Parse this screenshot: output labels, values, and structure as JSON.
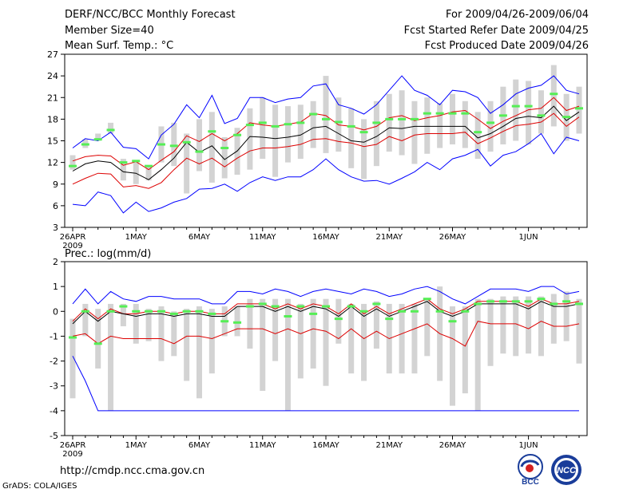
{
  "header": {
    "title": "DERF/NCC/BCC Monthly Forecast",
    "member_size": "Member Size=40",
    "variable": "Mean Surf. Temp.: °C",
    "period": "For 2009/04/26-2009/06/04",
    "started": "Fcst Started Refer Date 2009/04/25",
    "produced": "Fcst Produced Date 2009/04/26"
  },
  "footer": {
    "url": "http://cmdp.ncc.cma.gov.cn",
    "grads": "GrADS: COLA/IGES",
    "logo_bcc": "BCC",
    "logo_ncc": "NCC"
  },
  "colors": {
    "max": "#0000ff",
    "spread": "#dd0000",
    "mean": "#000000",
    "box": "#d3d3d3",
    "climate": "#55ee55"
  },
  "chart_data": [
    {
      "type": "line",
      "title": "Mean Surf. Temp.: °C",
      "x_labels": [
        "26APR",
        "1MAY",
        "6MAY",
        "11MAY",
        "16MAY",
        "21MAY",
        "26MAY",
        "1JUN"
      ],
      "x_year": "2009",
      "x_range": [
        0,
        40
      ],
      "ylim": [
        3,
        27
      ],
      "y_ticks": [
        3,
        6,
        9,
        12,
        15,
        18,
        21,
        24,
        27
      ],
      "grid": false,
      "series": [
        {
          "name": "max",
          "values": [
            6.2,
            6.0,
            7.9,
            7.4,
            5.0,
            6.5,
            5.2,
            5.7,
            6.5,
            7.0,
            8.3,
            8.4,
            9.0,
            8.0,
            9.2,
            10.0,
            9.5,
            10.0,
            10.0,
            11.0,
            12.5,
            11.0,
            10.0,
            9.4,
            9.5,
            9.0,
            9.8,
            10.7,
            12.0,
            11.0,
            12.5,
            13.0,
            13.8,
            11.5,
            13.0,
            13.5,
            14.6,
            16.0,
            13.2,
            15.5,
            15.0
          ]
        },
        {
          "name": "max-upper",
          "values": [
            14.0,
            15.3,
            15.0,
            16.2,
            14.1,
            13.9,
            12.5,
            15.8,
            17.3,
            20.0,
            18.2,
            21.3,
            17.4,
            18.1,
            21.0,
            21.0,
            20.3,
            20.8,
            21.0,
            22.6,
            22.9,
            20.0,
            19.5,
            18.7,
            20.0,
            22.0,
            24.0,
            22.0,
            21.3,
            20.0,
            22.0,
            21.8,
            21.0,
            18.8,
            20.0,
            21.5,
            22.3,
            22.7,
            24.0,
            22.0,
            21.5
          ]
        },
        {
          "name": "spread-upper",
          "values": [
            12.2,
            12.8,
            13.0,
            12.9,
            11.6,
            12.1,
            11.0,
            12.3,
            13.5,
            15.7,
            14.9,
            16.0,
            15.0,
            16.0,
            17.5,
            17.2,
            17.0,
            17.3,
            17.6,
            18.8,
            18.5,
            17.2,
            17.0,
            16.5,
            17.0,
            18.2,
            18.5,
            17.8,
            18.2,
            18.5,
            19.0,
            19.2,
            18.0,
            16.7,
            17.7,
            18.5,
            19.3,
            19.5,
            21.0,
            19.2,
            19.8
          ]
        },
        {
          "name": "mean",
          "values": [
            10.8,
            11.8,
            12.2,
            12.0,
            10.7,
            10.5,
            9.6,
            11.0,
            12.6,
            14.8,
            13.4,
            14.3,
            12.4,
            13.6,
            15.6,
            15.5,
            15.3,
            15.5,
            15.8,
            16.8,
            17.0,
            16.0,
            15.0,
            14.8,
            15.6,
            16.8,
            16.7,
            17.0,
            17.0,
            17.0,
            17.0,
            17.0,
            15.4,
            16.0,
            17.0,
            18.1,
            18.4,
            18.2,
            19.8,
            17.8,
            19.0
          ]
        },
        {
          "name": "spread-lower",
          "values": [
            9.0,
            9.8,
            10.5,
            10.4,
            8.6,
            8.8,
            8.4,
            9.2,
            11.0,
            12.6,
            11.8,
            12.6,
            11.4,
            12.6,
            13.6,
            14.0,
            14.0,
            14.2,
            14.5,
            15.2,
            15.3,
            14.9,
            14.7,
            14.2,
            14.5,
            15.6,
            15.0,
            15.8,
            16.0,
            16.0,
            16.0,
            16.2,
            14.6,
            15.4,
            16.3,
            17.1,
            17.3,
            17.6,
            18.8,
            17.0,
            18.3
          ]
        }
      ],
      "boxes": [
        {
          "low": 11.0,
          "high": 13.0
        },
        {
          "low": 14.0,
          "high": 15.2
        },
        {
          "low": 15.0,
          "high": 16.0
        },
        {
          "low": 16.0,
          "high": 17.5
        },
        {
          "low": 9.5,
          "high": 12.5
        },
        {
          "low": 9.0,
          "high": 12.0
        },
        {
          "low": 9.5,
          "high": 11.5
        },
        {
          "low": 12.0,
          "high": 17.0
        },
        {
          "low": 11.5,
          "high": 17.5
        },
        {
          "low": 7.7,
          "high": 16.0
        },
        {
          "low": 10.8,
          "high": 18.0
        },
        {
          "low": 9.2,
          "high": 19.0
        },
        {
          "low": 9.8,
          "high": 15.5
        },
        {
          "low": 10.3,
          "high": 16.8
        },
        {
          "low": 11.0,
          "high": 19.5
        },
        {
          "low": 12.5,
          "high": 21.0
        },
        {
          "low": 10.0,
          "high": 20.0
        },
        {
          "low": 12.0,
          "high": 19.8
        },
        {
          "low": 12.5,
          "high": 20.0
        },
        {
          "low": 14.0,
          "high": 20.5
        },
        {
          "low": 13.3,
          "high": 24.0
        },
        {
          "low": 13.5,
          "high": 21.0
        },
        {
          "low": 11.2,
          "high": 19.5
        },
        {
          "low": 9.7,
          "high": 18.0
        },
        {
          "low": 11.5,
          "high": 20.5
        },
        {
          "low": 13.5,
          "high": 21.5
        },
        {
          "low": 13.0,
          "high": 22.0
        },
        {
          "low": 11.8,
          "high": 20.5
        },
        {
          "low": 13.2,
          "high": 21.0
        },
        {
          "low": 14.0,
          "high": 20.2
        },
        {
          "low": 14.5,
          "high": 21.5
        },
        {
          "low": 14.0,
          "high": 20.5
        },
        {
          "low": 12.5,
          "high": 19.0
        },
        {
          "low": 13.5,
          "high": 20.5
        },
        {
          "low": 14.5,
          "high": 22.5
        },
        {
          "low": 15.0,
          "high": 23.5
        },
        {
          "low": 14.5,
          "high": 23.3
        },
        {
          "low": 16.0,
          "high": 22.0
        },
        {
          "low": 17.0,
          "high": 25.5
        },
        {
          "low": 15.0,
          "high": 21.5
        },
        {
          "low": 16.0,
          "high": 22.5
        }
      ],
      "climate": [
        11.5,
        14.5,
        15.2,
        16.5,
        12.0,
        12.2,
        11.5,
        14.5,
        14.3,
        14.8,
        13.5,
        16.3,
        14.0,
        15.8,
        17.2,
        17.5,
        17.0,
        17.3,
        17.5,
        18.7,
        18.0,
        17.6,
        17.0,
        16.2,
        17.5,
        18.0,
        18.0,
        18.0,
        18.8,
        18.8,
        18.8,
        18.8,
        16.2,
        17.5,
        18.5,
        19.8,
        19.8,
        18.5,
        21.5,
        18.3,
        19.5
      ]
    },
    {
      "type": "line",
      "title": "Prec.: log(mm/d)",
      "x_labels": [
        "26APR",
        "1MAY",
        "6MAY",
        "11MAY",
        "16MAY",
        "21MAY",
        "26MAY",
        "1JUN"
      ],
      "x_year": "2009",
      "x_range": [
        0,
        40
      ],
      "ylim": [
        -5,
        2
      ],
      "y_ticks": [
        -5,
        -4,
        -3,
        -2,
        -1,
        0,
        1,
        2
      ],
      "grid": false,
      "series": [
        {
          "name": "max",
          "values": [
            -1.8,
            -2.8,
            -4.0,
            -4.0,
            -4.0,
            -4.0,
            -4.0,
            -4.0,
            -4.0,
            -4.0,
            -4.0,
            -4.0,
            -4.0,
            -4.0,
            -4.0,
            -4.0,
            -4.0,
            -4.0,
            -4.0,
            -4.0,
            -4.0,
            -4.0,
            -4.0,
            -4.0,
            -4.0,
            -4.0,
            -4.0,
            -4.0,
            -4.0,
            -4.0,
            -4.0,
            -4.0,
            -4.0,
            -4.0,
            -4.0,
            -4.0,
            -4.0,
            -4.0,
            -4.0,
            -4.0,
            -4.0
          ]
        },
        {
          "name": "max-upper",
          "values": [
            0.3,
            0.9,
            0.3,
            0.8,
            0.5,
            0.4,
            0.6,
            0.6,
            0.5,
            0.5,
            0.5,
            0.3,
            0.3,
            0.8,
            0.8,
            0.7,
            0.9,
            0.8,
            0.6,
            0.8,
            0.9,
            0.8,
            0.7,
            0.9,
            0.8,
            0.6,
            0.7,
            0.9,
            1.0,
            0.8,
            0.5,
            0.3,
            0.6,
            0.9,
            0.9,
            0.9,
            0.8,
            1.0,
            1.0,
            0.7,
            0.8
          ]
        },
        {
          "name": "spread-upper",
          "values": [
            -0.4,
            0.1,
            -0.3,
            0.1,
            -0.1,
            -0.1,
            0.0,
            0.0,
            -0.1,
            0.0,
            0.0,
            -0.1,
            -0.1,
            0.3,
            0.3,
            0.3,
            0.1,
            0.3,
            0.1,
            0.3,
            0.2,
            -0.1,
            0.3,
            -0.1,
            0.2,
            -0.1,
            0.1,
            0.3,
            0.5,
            0.1,
            -0.1,
            0.1,
            0.4,
            0.4,
            0.4,
            0.4,
            0.2,
            0.5,
            0.3,
            0.3,
            0.4
          ]
        },
        {
          "name": "mean",
          "values": [
            -0.5,
            0.0,
            -0.4,
            0.0,
            -0.1,
            -0.2,
            -0.1,
            -0.1,
            -0.2,
            -0.1,
            -0.1,
            -0.2,
            -0.2,
            0.2,
            0.2,
            0.2,
            0.0,
            0.2,
            0.0,
            0.2,
            0.1,
            -0.2,
            0.2,
            -0.2,
            0.1,
            -0.2,
            0.0,
            0.2,
            0.4,
            0.0,
            -0.2,
            0.0,
            0.3,
            0.3,
            0.3,
            0.3,
            0.1,
            0.4,
            0.2,
            0.2,
            0.3
          ]
        },
        {
          "name": "spread-lower",
          "values": [
            -1.0,
            -0.9,
            -1.3,
            -1.0,
            -1.1,
            -1.1,
            -1.1,
            -1.1,
            -1.3,
            -1.0,
            -1.0,
            -1.1,
            -0.9,
            -0.7,
            -0.7,
            -0.7,
            -0.9,
            -0.7,
            -0.9,
            -0.7,
            -0.8,
            -1.1,
            -0.7,
            -1.1,
            -0.8,
            -1.1,
            -0.9,
            -0.7,
            -0.5,
            -0.9,
            -1.1,
            -1.4,
            -0.4,
            -0.5,
            -0.5,
            -0.5,
            -0.7,
            -0.4,
            -0.6,
            -0.6,
            -0.5
          ]
        }
      ],
      "boxes": [
        {
          "low": -3.5,
          "high": -0.3
        },
        {
          "low": -1.0,
          "high": 0.3
        },
        {
          "low": -2.3,
          "high": 0.1
        },
        {
          "low": -4.0,
          "high": 0.3
        },
        {
          "low": -0.6,
          "high": 0.3
        },
        {
          "low": -1.3,
          "high": 0.3
        },
        {
          "low": -1.2,
          "high": 0.1
        },
        {
          "low": -2.0,
          "high": 0.2
        },
        {
          "low": -1.8,
          "high": 0.0
        },
        {
          "low": -2.8,
          "high": 0.1
        },
        {
          "low": -3.5,
          "high": 0.2
        },
        {
          "low": -2.5,
          "high": 0.1
        },
        {
          "low": -1.0,
          "high": 0.2
        },
        {
          "low": -1.0,
          "high": 0.2
        },
        {
          "low": -1.5,
          "high": 0.5
        },
        {
          "low": -3.2,
          "high": 0.5
        },
        {
          "low": -2.0,
          "high": 0.5
        },
        {
          "low": -4.0,
          "high": 0.5
        },
        {
          "low": -2.7,
          "high": 0.3
        },
        {
          "low": -2.3,
          "high": 0.5
        },
        {
          "low": -3.0,
          "high": 0.5
        },
        {
          "low": -1.3,
          "high": 0.5
        },
        {
          "low": -2.5,
          "high": 0.3
        },
        {
          "low": -2.8,
          "high": 0.3
        },
        {
          "low": -1.5,
          "high": 0.4
        },
        {
          "low": -2.5,
          "high": 0.3
        },
        {
          "low": -2.5,
          "high": 0.3
        },
        {
          "low": -2.5,
          "high": 0.3
        },
        {
          "low": -1.8,
          "high": 0.5
        },
        {
          "low": -2.8,
          "high": 1.0
        },
        {
          "low": -3.8,
          "high": 0.2
        },
        {
          "low": -3.3,
          "high": 0.2
        },
        {
          "low": -4.0,
          "high": 0.5
        },
        {
          "low": -2.2,
          "high": 0.5
        },
        {
          "low": -1.7,
          "high": 0.6
        },
        {
          "low": -1.8,
          "high": 0.6
        },
        {
          "low": -1.7,
          "high": 0.6
        },
        {
          "low": -1.8,
          "high": 0.6
        },
        {
          "low": -1.3,
          "high": 0.7
        },
        {
          "low": -1.2,
          "high": 0.8
        },
        {
          "low": -2.1,
          "high": 0.5
        }
      ],
      "climate": [
        -1.05,
        0.0,
        -1.3,
        0.0,
        0.2,
        0.0,
        0.0,
        0.0,
        -0.1,
        0.0,
        0.0,
        -0.1,
        -0.4,
        -0.45,
        0.2,
        0.3,
        0.2,
        -0.2,
        0.2,
        -0.1,
        0.2,
        -0.3,
        0.2,
        0.0,
        0.3,
        -0.3,
        0.0,
        0.0,
        0.5,
        0.0,
        -0.4,
        0.0,
        0.3,
        0.4,
        0.4,
        0.4,
        0.4,
        0.5,
        0.3,
        0.4,
        0.3
      ]
    }
  ]
}
